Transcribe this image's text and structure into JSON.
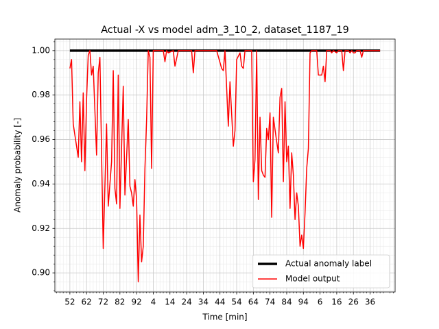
{
  "chart_data": {
    "type": "line",
    "title": "Actual -X vs model adm_3_10_2, dataset_1187_19",
    "xlabel": "Time [min]",
    "ylabel": "Anomaly probability [-]",
    "xlim": [
      -9,
      195
    ],
    "ylim": [
      0.8914,
      1.0052
    ],
    "xticks": [
      {
        "value": 0,
        "label": "52"
      },
      {
        "value": 10,
        "label": "62"
      },
      {
        "value": 20,
        "label": "72"
      },
      {
        "value": 30,
        "label": "82"
      },
      {
        "value": 40,
        "label": "92"
      },
      {
        "value": 50,
        "label": "4"
      },
      {
        "value": 60,
        "label": "14"
      },
      {
        "value": 70,
        "label": "24"
      },
      {
        "value": 80,
        "label": "34"
      },
      {
        "value": 90,
        "label": "44"
      },
      {
        "value": 100,
        "label": "54"
      },
      {
        "value": 110,
        "label": "64"
      },
      {
        "value": 120,
        "label": "74"
      },
      {
        "value": 130,
        "label": "84"
      },
      {
        "value": 140,
        "label": "94"
      },
      {
        "value": 150,
        "label": "6"
      },
      {
        "value": 160,
        "label": "16"
      },
      {
        "value": 170,
        "label": "26"
      },
      {
        "value": 180,
        "label": "36"
      }
    ],
    "yticks": [
      {
        "value": 0.9,
        "label": "0.90"
      },
      {
        "value": 0.92,
        "label": "0.92"
      },
      {
        "value": 0.94,
        "label": "0.94"
      },
      {
        "value": 0.96,
        "label": "0.96"
      },
      {
        "value": 0.98,
        "label": "0.98"
      },
      {
        "value": 1.0,
        "label": "1.00"
      }
    ],
    "grid": true,
    "minor_grid": true,
    "legend": "lower right",
    "series": [
      {
        "name": "Actual anomaly label",
        "color": "#000000",
        "width": 3.5,
        "x": [
          0,
          186
        ],
        "values": [
          1.0,
          1.0
        ]
      },
      {
        "name": "Model output",
        "color": "#ff0000",
        "width": 1.5,
        "x": [
          0,
          1,
          2,
          3,
          5,
          6,
          7,
          8,
          9,
          10,
          11,
          12,
          13,
          14,
          16,
          17,
          18,
          20,
          22,
          23,
          25,
          26,
          27,
          28,
          29,
          30,
          32,
          33,
          35,
          36,
          37,
          38,
          39,
          40,
          41,
          42,
          43,
          44,
          45,
          46,
          47,
          48,
          49,
          50,
          56,
          57,
          58,
          59,
          62,
          63,
          65,
          73,
          74,
          75,
          88,
          91,
          92,
          93,
          95,
          96,
          98,
          99,
          100,
          102,
          103,
          104,
          105,
          109,
          110,
          111,
          112,
          113,
          114,
          115,
          116,
          117,
          118,
          119,
          120,
          121,
          122,
          124,
          125,
          126,
          127,
          128,
          129,
          130,
          131,
          132,
          133,
          134,
          135,
          136,
          137,
          138,
          139,
          140,
          141,
          142,
          143,
          144,
          145,
          148,
          149,
          151,
          152,
          153,
          154,
          156,
          157,
          158,
          160,
          161,
          163,
          164,
          165,
          167,
          168,
          169,
          170,
          171,
          172,
          174,
          175,
          176,
          186
        ],
        "values": [
          0.992,
          0.996,
          0.967,
          0.962,
          0.952,
          0.977,
          0.95,
          0.981,
          0.946,
          0.978,
          0.998,
          1.0,
          0.989,
          0.993,
          0.953,
          0.99,
          0.997,
          0.911,
          0.967,
          0.93,
          0.95,
          0.991,
          0.938,
          0.931,
          0.989,
          0.929,
          0.984,
          0.935,
          0.969,
          0.939,
          0.936,
          0.93,
          0.942,
          0.933,
          0.896,
          0.926,
          0.905,
          0.912,
          0.947,
          0.969,
          1.0,
          0.997,
          0.947,
          1.0,
          1.0,
          0.995,
          1.0,
          0.999,
          1.0,
          0.993,
          1.0,
          1.0,
          0.99,
          1.0,
          1.0,
          0.992,
          0.991,
          1.0,
          0.966,
          0.986,
          0.957,
          0.964,
          0.996,
          0.999,
          0.993,
          0.992,
          1.0,
          1.0,
          0.941,
          0.951,
          1.0,
          0.933,
          0.97,
          0.946,
          0.944,
          0.943,
          0.965,
          0.96,
          0.972,
          0.925,
          0.97,
          0.959,
          0.954,
          0.979,
          0.983,
          0.941,
          0.977,
          0.95,
          0.957,
          0.929,
          0.954,
          0.944,
          0.924,
          0.936,
          0.93,
          0.912,
          0.917,
          0.911,
          0.927,
          0.947,
          0.956,
          0.999,
          1.0,
          1.0,
          0.989,
          0.989,
          0.993,
          0.986,
          1.0,
          1.0,
          0.999,
          1.0,
          0.999,
          1.0,
          1.0,
          0.991,
          1.0,
          1.0,
          0.999,
          1.0,
          0.999,
          0.999,
          1.0,
          1.0,
          0.997,
          1.0,
          1.0
        ]
      }
    ]
  }
}
